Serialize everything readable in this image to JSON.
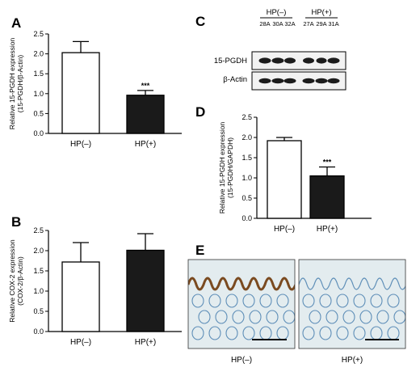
{
  "colors": {
    "bar_control": "#ffffff",
    "bar_infected": "#1a1a1a",
    "axis": "#000000",
    "band": "#1c1c1c",
    "tissue_background": "#e3ecef",
    "crypt_stain": "#5f8fb8",
    "brown_stain": "#7a4a20"
  },
  "labels": {
    "A": "A",
    "B": "B",
    "C": "C",
    "D": "D",
    "E": "E"
  },
  "blot": {
    "group_neg": "HP(–)",
    "group_pos": "HP(+)",
    "lanes": [
      "28A",
      "30A",
      "32A",
      "27A",
      "29A",
      "31A"
    ],
    "row_1": "15-PGDH",
    "row_2": "β-Actin"
  },
  "ihc": {
    "label_neg": "HP(–)",
    "label_pos": "HP(+)",
    "icons": [
      "ihc-tissue-image-hp-negative",
      "ihc-tissue-image-hp-positive",
      "scale-bar-icon"
    ]
  },
  "chart_data": [
    {
      "id": "A",
      "type": "bar",
      "categories": [
        "HP(–)",
        "HP(+)"
      ],
      "values": [
        2.03,
        0.96
      ],
      "errors": [
        0.28,
        0.12
      ],
      "significance": [
        "",
        "***"
      ],
      "ylabel_line1": "Relative 15-PGDH expression",
      "ylabel_line2": "(15-PGDH/β-Actin)",
      "ylim": [
        0,
        2.5
      ],
      "yticks": [
        0.0,
        0.5,
        1.0,
        1.5,
        2.0,
        2.5
      ],
      "ytick_labels": [
        "0.0",
        "0.5",
        "1.0",
        "1.5",
        "2.0",
        "2.5"
      ],
      "grid": false,
      "legend": "none"
    },
    {
      "id": "B",
      "type": "bar",
      "categories": [
        "HP(–)",
        "HP(+)"
      ],
      "values": [
        1.72,
        2.01
      ],
      "errors": [
        0.48,
        0.41
      ],
      "significance": [
        "",
        ""
      ],
      "ylabel_line1": "Relative COX-2 expression",
      "ylabel_line2": "(COX-2/β-Actin)",
      "ylim": [
        0,
        2.5
      ],
      "yticks": [
        0.0,
        0.5,
        1.0,
        1.5,
        2.0,
        2.5
      ],
      "ytick_labels": [
        "0.0",
        "0.5",
        "1.0",
        "1.5",
        "2.0",
        "2.5"
      ],
      "grid": false,
      "legend": "none"
    },
    {
      "id": "D",
      "type": "bar",
      "categories": [
        "HP(–)",
        "HP(+)"
      ],
      "values": [
        1.92,
        1.05
      ],
      "errors": [
        0.08,
        0.22
      ],
      "significance": [
        "",
        "***"
      ],
      "ylabel_line1": "Relative 15-PGDH expression",
      "ylabel_line2": "(15-PGDH/GAPDH)",
      "ylim": [
        0,
        2.5
      ],
      "yticks": [
        0.0,
        0.5,
        1.0,
        1.5,
        2.0,
        2.5
      ],
      "ytick_labels": [
        "0.0",
        "0.5",
        "1.0",
        "1.5",
        "2.0",
        "2.5"
      ],
      "grid": false,
      "legend": "none"
    }
  ]
}
